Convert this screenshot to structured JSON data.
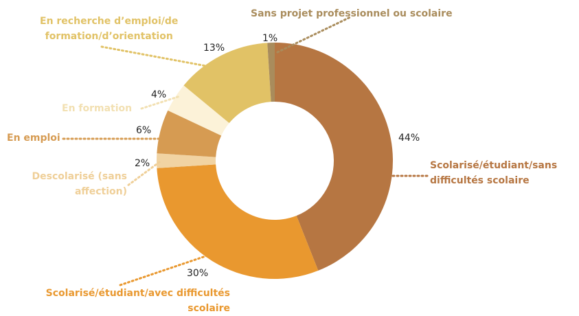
{
  "chart_data": {
    "type": "donut",
    "categories": [
      "Scolarisé/étudiant/sans\ndifficultés scolaire",
      "Scolarisé/étudiant/avec difficultés\nscolaire",
      "Descolarisé (sans\naffection)",
      "En emploi",
      "En formation",
      "En recherche d’emploi/de\nformation/d’orientation",
      "Sans projet professionnel ou scolaire"
    ],
    "values": [
      44,
      30,
      2,
      6,
      4,
      13,
      1
    ],
    "value_labels": [
      "44%",
      "30%",
      "2%",
      "6%",
      "4%",
      "13%",
      "1%"
    ],
    "colors": [
      "#b67642",
      "#e9982f",
      "#f1d3a2",
      "#d69b52",
      "#fcf2d8",
      "#e1c266",
      "#a98c5c"
    ]
  }
}
